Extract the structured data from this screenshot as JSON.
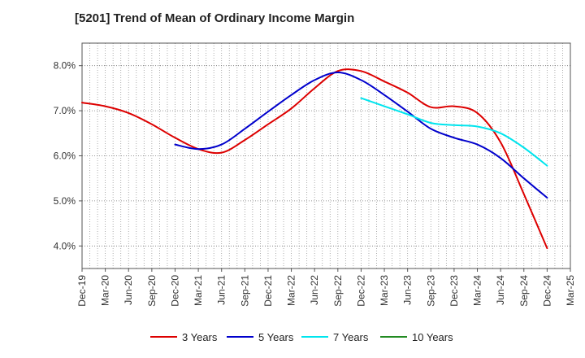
{
  "chart_data": {
    "type": "line",
    "title": "[5201]  Trend of Mean of Ordinary Income Margin",
    "xlabel": "",
    "ylabel": "",
    "x_ticks": [
      "Dec-19",
      "Mar-20",
      "Jun-20",
      "Sep-20",
      "Dec-20",
      "Mar-21",
      "Jun-21",
      "Sep-21",
      "Dec-21",
      "Mar-22",
      "Jun-22",
      "Sep-22",
      "Dec-22",
      "Mar-23",
      "Jun-23",
      "Sep-23",
      "Dec-23",
      "Mar-24",
      "Jun-24",
      "Sep-24",
      "Dec-24",
      "Mar-25"
    ],
    "y_ticks": [
      "4.0%",
      "5.0%",
      "6.0%",
      "7.0%",
      "8.0%"
    ],
    "ylim": [
      3.5,
      8.5
    ],
    "grid": true,
    "legend_position": "bottom",
    "series": [
      {
        "name": "3 Years",
        "color": "#dd0000",
        "x": [
          "Dec-19",
          "Mar-20",
          "Jun-20",
          "Sep-20",
          "Dec-20",
          "Mar-21",
          "Jun-21",
          "Sep-21",
          "Dec-21",
          "Mar-22",
          "Jun-22",
          "Sep-22",
          "Dec-22",
          "Mar-23",
          "Jun-23",
          "Sep-23",
          "Dec-23",
          "Mar-24",
          "Jun-24",
          "Sep-24",
          "Dec-24"
        ],
        "values": [
          7.18,
          7.1,
          6.95,
          6.7,
          6.4,
          6.15,
          6.07,
          6.35,
          6.7,
          7.05,
          7.5,
          7.88,
          7.88,
          7.65,
          7.4,
          7.08,
          7.1,
          6.95,
          6.3,
          5.15,
          3.95
        ]
      },
      {
        "name": "5 Years",
        "color": "#0000cc",
        "x": [
          "Dec-20",
          "Mar-21",
          "Jun-21",
          "Sep-21",
          "Dec-21",
          "Mar-22",
          "Jun-22",
          "Sep-22",
          "Dec-22",
          "Mar-23",
          "Jun-23",
          "Sep-23",
          "Dec-23",
          "Mar-24",
          "Jun-24",
          "Sep-24",
          "Dec-24"
        ],
        "values": [
          6.25,
          6.15,
          6.25,
          6.6,
          6.98,
          7.35,
          7.68,
          7.85,
          7.68,
          7.35,
          6.98,
          6.6,
          6.4,
          6.25,
          5.95,
          5.5,
          5.07
        ]
      },
      {
        "name": "7 Years",
        "color": "#00e5ee",
        "x": [
          "Dec-22",
          "Mar-23",
          "Jun-23",
          "Sep-23",
          "Dec-23",
          "Mar-24",
          "Jun-24",
          "Sep-24",
          "Dec-24"
        ],
        "values": [
          7.28,
          7.1,
          6.92,
          6.73,
          6.68,
          6.65,
          6.5,
          6.18,
          5.78
        ]
      },
      {
        "name": "10 Years",
        "color": "#228b22",
        "x": [],
        "values": []
      }
    ]
  }
}
